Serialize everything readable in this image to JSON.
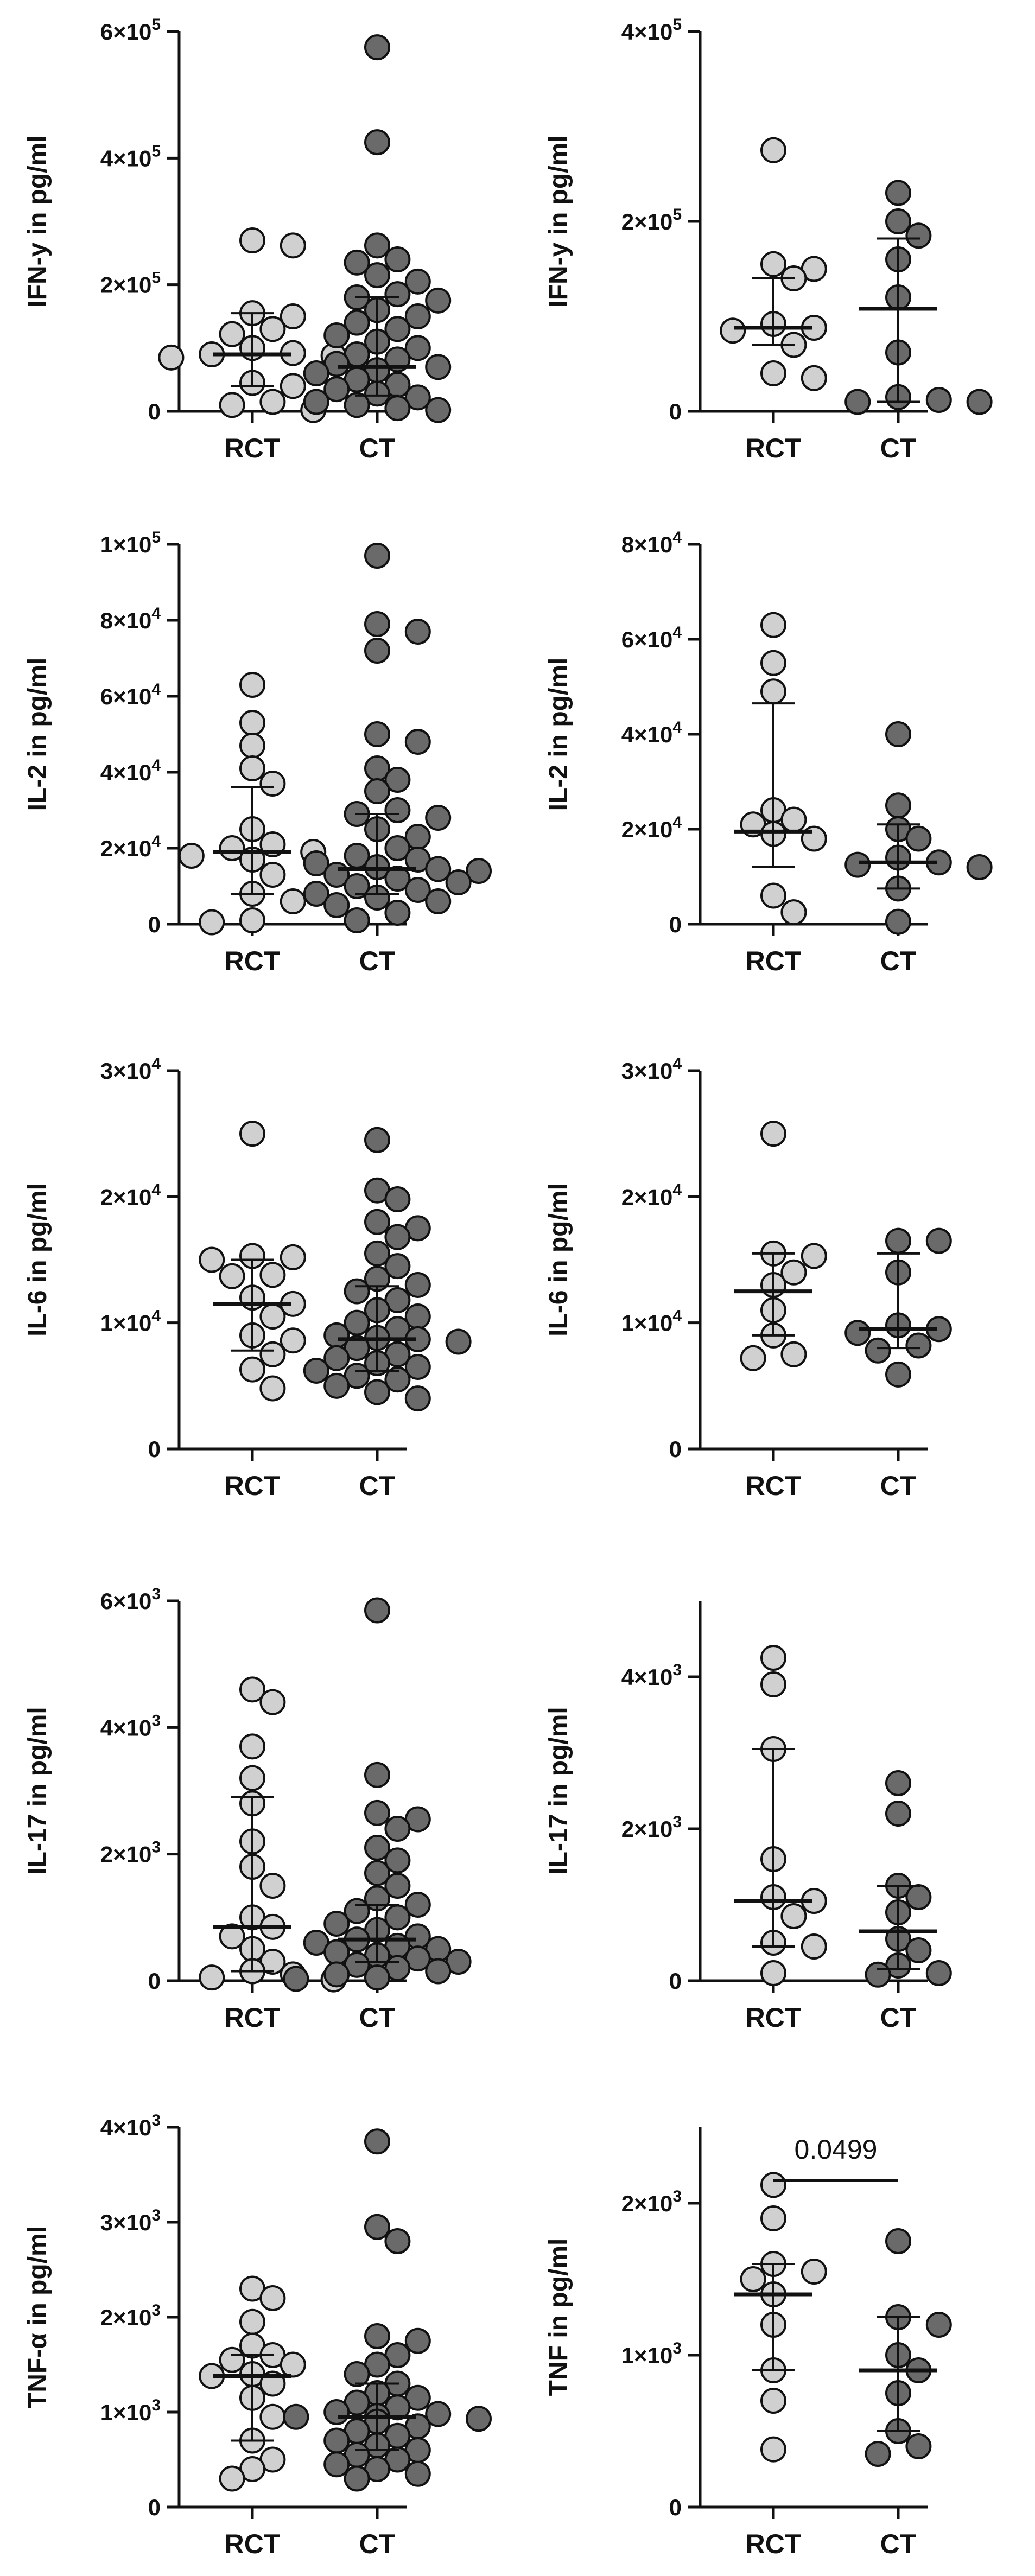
{
  "figure": {
    "colors": {
      "RCT": "#d0d0d0",
      "CT": "#6a6a6a",
      "stroke": "#111111"
    }
  },
  "chart_data": [
    {
      "type": "scatter",
      "ylabel": "IFN-y in pg/ml",
      "categories": [
        "RCT",
        "CT"
      ],
      "ylim": [
        0,
        600000
      ],
      "yticks": [
        0,
        200000,
        400000,
        600000
      ],
      "ytick_labels": [
        [
          "0",
          ""
        ],
        [
          "2×10",
          "5"
        ],
        [
          "4×10",
          "5"
        ],
        [
          "6×10",
          "5"
        ]
      ],
      "series": [
        {
          "name": "RCT",
          "median": 90000,
          "q1": 40000,
          "q3": 155000,
          "values": [
            270000,
            262000,
            155000,
            150000,
            130000,
            122000,
            100000,
            92000,
            90000,
            88000,
            85000,
            45000,
            40000,
            15000,
            10000,
            2000
          ]
        },
        {
          "name": "CT",
          "median": 70000,
          "q1": 25000,
          "q3": 180000,
          "values": [
            575000,
            425000,
            262000,
            240000,
            235000,
            215000,
            205000,
            185000,
            180000,
            175000,
            160000,
            150000,
            140000,
            130000,
            120000,
            110000,
            100000,
            90000,
            82000,
            75000,
            70000,
            65000,
            60000,
            50000,
            42000,
            35000,
            28000,
            22000,
            15000,
            10000,
            5000,
            2000
          ]
        }
      ]
    },
    {
      "type": "scatter",
      "ylabel": "IFN-y in pg/ml",
      "categories": [
        "RCT",
        "CT"
      ],
      "ylim": [
        0,
        400000
      ],
      "yticks": [
        0,
        200000,
        400000
      ],
      "ytick_labels": [
        [
          "0",
          ""
        ],
        [
          "2×10",
          "5"
        ],
        [
          "4×10",
          "5"
        ]
      ],
      "series": [
        {
          "name": "RCT",
          "median": 88000,
          "q1": 70000,
          "q3": 140000,
          "values": [
            275000,
            155000,
            150000,
            140000,
            92000,
            88000,
            85000,
            70000,
            40000,
            35000
          ]
        },
        {
          "name": "CT",
          "median": 108000,
          "q1": 10000,
          "q3": 182000,
          "values": [
            230000,
            200000,
            185000,
            160000,
            120000,
            62000,
            15000,
            12000,
            10000,
            10000
          ]
        }
      ]
    },
    {
      "type": "scatter",
      "ylabel": "IL-2 in pg/ml",
      "categories": [
        "RCT",
        "CT"
      ],
      "ylim": [
        0,
        100000
      ],
      "yticks": [
        0,
        20000,
        40000,
        60000,
        80000,
        100000
      ],
      "ytick_labels": [
        [
          "0",
          ""
        ],
        [
          "2×10",
          "4"
        ],
        [
          "4×10",
          "4"
        ],
        [
          "6×10",
          "4"
        ],
        [
          "8×10",
          "4"
        ],
        [
          "1×10",
          "5"
        ]
      ],
      "series": [
        {
          "name": "RCT",
          "median": 19000,
          "q1": 8000,
          "q3": 36000,
          "values": [
            63000,
            53000,
            47000,
            41000,
            37000,
            25000,
            21000,
            20000,
            19000,
            18000,
            17000,
            13000,
            8000,
            6000,
            1000,
            500
          ]
        },
        {
          "name": "CT",
          "median": 14500,
          "q1": 8000,
          "q3": 29000,
          "values": [
            97000,
            79000,
            77000,
            72000,
            50000,
            48000,
            41000,
            38000,
            35000,
            30000,
            29000,
            28000,
            25000,
            23000,
            20000,
            18000,
            17000,
            16000,
            15000,
            14500,
            14000,
            13000,
            12000,
            11000,
            10000,
            9000,
            8000,
            7000,
            6000,
            5000,
            3000,
            1000
          ]
        }
      ]
    },
    {
      "type": "scatter",
      "ylabel": "IL-2 in pg/ml",
      "categories": [
        "RCT",
        "CT"
      ],
      "ylim": [
        0,
        80000
      ],
      "yticks": [
        0,
        20000,
        40000,
        60000,
        80000
      ],
      "ytick_labels": [
        [
          "0",
          ""
        ],
        [
          "2×10",
          "4"
        ],
        [
          "4×10",
          "4"
        ],
        [
          "6×10",
          "4"
        ],
        [
          "8×10",
          "4"
        ]
      ],
      "series": [
        {
          "name": "RCT",
          "median": 19500,
          "q1": 12000,
          "q3": 46500,
          "values": [
            63000,
            55000,
            49000,
            24000,
            22000,
            21000,
            19000,
            18000,
            6000,
            2500
          ]
        },
        {
          "name": "CT",
          "median": 13000,
          "q1": 7500,
          "q3": 21000,
          "values": [
            40000,
            25000,
            20000,
            18000,
            14000,
            13000,
            12500,
            12000,
            7500,
            500
          ]
        }
      ]
    },
    {
      "type": "scatter",
      "ylabel": "IL-6 in pg/ml",
      "categories": [
        "RCT",
        "CT"
      ],
      "ylim": [
        0,
        30000
      ],
      "yticks": [
        0,
        10000,
        20000,
        30000
      ],
      "ytick_labels": [
        [
          "0",
          ""
        ],
        [
          "1×10",
          "4"
        ],
        [
          "2×10",
          "4"
        ],
        [
          "3×10",
          "4"
        ]
      ],
      "series": [
        {
          "name": "RCT",
          "median": 11500,
          "q1": 7800,
          "q3": 15000,
          "values": [
            25000,
            15300,
            15200,
            15000,
            13800,
            13700,
            12000,
            11500,
            10500,
            9000,
            8600,
            7500,
            6300,
            4800
          ]
        },
        {
          "name": "CT",
          "median": 8700,
          "q1": 6200,
          "q3": 12900,
          "values": [
            24500,
            20500,
            19800,
            18000,
            17500,
            16800,
            15500,
            14500,
            13500,
            13000,
            12500,
            11800,
            11000,
            10500,
            10000,
            9500,
            9000,
            8800,
            8700,
            8500,
            8000,
            7500,
            7200,
            6800,
            6500,
            6200,
            5800,
            5500,
            5000,
            4500,
            4000
          ]
        }
      ]
    },
    {
      "type": "scatter",
      "ylabel": "IL-6 in pg/ml",
      "categories": [
        "RCT",
        "CT"
      ],
      "ylim": [
        0,
        30000
      ],
      "yticks": [
        0,
        10000,
        20000,
        30000
      ],
      "ytick_labels": [
        [
          "0",
          ""
        ],
        [
          "1×10",
          "4"
        ],
        [
          "2×10",
          "4"
        ],
        [
          "3×10",
          "4"
        ]
      ],
      "series": [
        {
          "name": "RCT",
          "median": 12500,
          "q1": 9000,
          "q3": 15500,
          "values": [
            25000,
            15500,
            15300,
            14000,
            13000,
            11000,
            9000,
            7500,
            7200
          ]
        },
        {
          "name": "CT",
          "median": 9500,
          "q1": 8000,
          "q3": 15500,
          "values": [
            16500,
            16500,
            14000,
            9800,
            9500,
            9200,
            8200,
            7800,
            5900
          ]
        }
      ]
    },
    {
      "type": "scatter",
      "ylabel": "IL-17 in pg/ml",
      "categories": [
        "RCT",
        "CT"
      ],
      "ylim": [
        0,
        6000
      ],
      "yticks": [
        0,
        2000,
        4000,
        6000
      ],
      "ytick_labels": [
        [
          "0",
          ""
        ],
        [
          "2×10",
          "3"
        ],
        [
          "4×10",
          "3"
        ],
        [
          "6×10",
          "3"
        ]
      ],
      "series": [
        {
          "name": "RCT",
          "median": 850,
          "q1": 150,
          "q3": 2900,
          "values": [
            4600,
            4400,
            3700,
            3200,
            2800,
            2200,
            1800,
            1500,
            1000,
            850,
            700,
            500,
            300,
            150,
            100,
            50,
            20
          ]
        },
        {
          "name": "CT",
          "median": 650,
          "q1": 300,
          "q3": 1200,
          "values": [
            5850,
            3250,
            2650,
            2550,
            2400,
            2100,
            1900,
            1700,
            1500,
            1300,
            1200,
            1100,
            1000,
            900,
            800,
            700,
            650,
            600,
            550,
            500,
            450,
            400,
            350,
            300,
            250,
            200,
            150,
            100,
            50,
            30
          ]
        }
      ]
    },
    {
      "type": "scatter",
      "ylabel": "IL-17 in pg/ml",
      "categories": [
        "RCT",
        "CT"
      ],
      "ylim": [
        0,
        5000
      ],
      "yticks": [
        0,
        2000,
        4000
      ],
      "ytick_labels": [
        [
          "0",
          ""
        ],
        [
          "2×10",
          "3"
        ],
        [
          "4×10",
          "3"
        ]
      ],
      "series": [
        {
          "name": "RCT",
          "median": 1050,
          "q1": 450,
          "q3": 3050,
          "values": [
            4250,
            3900,
            3050,
            1600,
            1100,
            1050,
            850,
            500,
            450,
            100
          ]
        },
        {
          "name": "CT",
          "median": 650,
          "q1": 150,
          "q3": 1250,
          "values": [
            2600,
            2200,
            1250,
            1100,
            900,
            550,
            400,
            200,
            100,
            80
          ]
        }
      ]
    },
    {
      "type": "scatter",
      "ylabel": "TNF-α in pg/ml",
      "categories": [
        "RCT",
        "CT"
      ],
      "ylim": [
        0,
        4000
      ],
      "yticks": [
        0,
        1000,
        2000,
        3000,
        4000
      ],
      "ytick_labels": [
        [
          "0",
          ""
        ],
        [
          "1×10",
          "3"
        ],
        [
          "2×10",
          "3"
        ],
        [
          "3×10",
          "3"
        ],
        [
          "4×10",
          "3"
        ]
      ],
      "series": [
        {
          "name": "RCT",
          "median": 1380,
          "q1": 700,
          "q3": 1600,
          "values": [
            2300,
            2200,
            1950,
            1700,
            1600,
            1550,
            1500,
            1400,
            1380,
            1300,
            1150,
            950,
            700,
            500,
            400,
            300
          ]
        },
        {
          "name": "CT",
          "median": 950,
          "q1": 600,
          "q3": 1300,
          "values": [
            3850,
            2950,
            2800,
            1800,
            1750,
            1600,
            1500,
            1400,
            1300,
            1200,
            1150,
            1100,
            1050,
            1000,
            980,
            960,
            950,
            930,
            900,
            850,
            800,
            750,
            700,
            650,
            600,
            550,
            500,
            450,
            400,
            350,
            300
          ]
        }
      ]
    },
    {
      "type": "scatter",
      "ylabel": "TNF in pg/ml",
      "categories": [
        "RCT",
        "CT"
      ],
      "ylim": [
        0,
        2500
      ],
      "yticks": [
        0,
        1000,
        2000
      ],
      "ytick_labels": [
        [
          "0",
          ""
        ],
        [
          "1×10",
          "3"
        ],
        [
          "2×10",
          "3"
        ]
      ],
      "annotation": {
        "text": "0.0499",
        "y": 2150
      },
      "series": [
        {
          "name": "RCT",
          "median": 1400,
          "q1": 900,
          "q3": 1600,
          "values": [
            2120,
            1900,
            1600,
            1550,
            1500,
            1400,
            1200,
            900,
            700,
            380
          ]
        },
        {
          "name": "CT",
          "median": 900,
          "q1": 500,
          "q3": 1250,
          "values": [
            1750,
            1250,
            1200,
            1000,
            900,
            750,
            500,
            400,
            350
          ]
        }
      ]
    }
  ]
}
